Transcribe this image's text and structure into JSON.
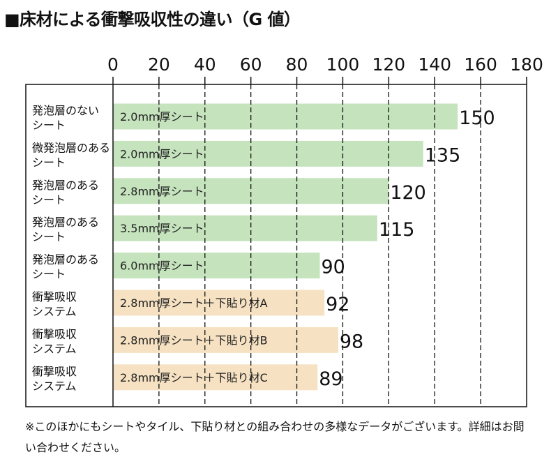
{
  "chart_data": {
    "type": "bar",
    "orientation": "horizontal",
    "title": "■床材による衝撃吸収性の違い（G 値）",
    "xlim": [
      0,
      180
    ],
    "xticks": [
      0,
      20,
      40,
      60,
      80,
      100,
      120,
      140,
      160,
      180
    ],
    "grid": "dashed vertical",
    "rows": [
      {
        "category": [
          "発泡層のない",
          "シート"
        ],
        "bar_label": "2.0mm厚シート",
        "value": 150,
        "group": "sheet"
      },
      {
        "category": [
          "微発泡層のある",
          "シート"
        ],
        "bar_label": "2.0mm厚シート",
        "value": 135,
        "group": "sheet"
      },
      {
        "category": [
          "発泡層のある",
          "シート"
        ],
        "bar_label": "2.8mm厚シート",
        "value": 120,
        "group": "sheet"
      },
      {
        "category": [
          "発泡層のある",
          "シート"
        ],
        "bar_label": "3.5mm厚シート",
        "value": 115,
        "group": "sheet"
      },
      {
        "category": [
          "発泡層のある",
          "シート"
        ],
        "bar_label": "6.0mm厚シート",
        "value": 90,
        "group": "sheet"
      },
      {
        "category": [
          "衝撃吸収",
          "システム"
        ],
        "bar_label": "2.8mm厚シート＋下貼り材A",
        "value": 92,
        "group": "system"
      },
      {
        "category": [
          "衝撃吸収",
          "システム"
        ],
        "bar_label": "2.8mm厚シート＋下貼り材B",
        "value": 98,
        "group": "system"
      },
      {
        "category": [
          "衝撃吸収",
          "システム"
        ],
        "bar_label": "2.8mm厚シート＋下貼り材C",
        "value": 89,
        "group": "system"
      }
    ],
    "colors": {
      "sheet": "#c5e3bd",
      "system": "#f6e2c2"
    }
  },
  "note": "※このほかにもシートやタイル、下貼り材との組み合わせの多様なデータがございます。詳細はお問い合わせください。"
}
